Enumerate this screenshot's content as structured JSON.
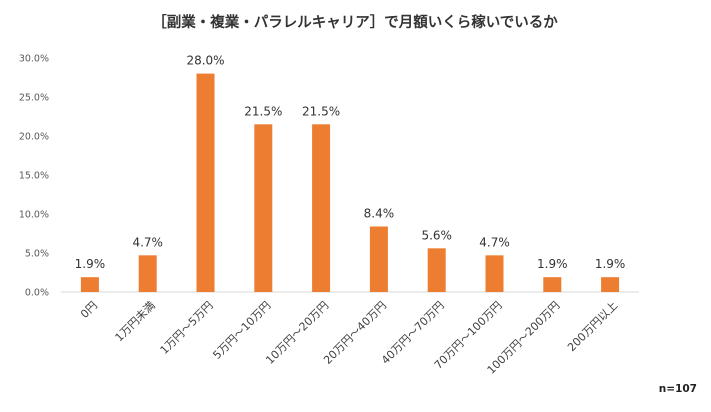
{
  "chart_data": {
    "type": "bar",
    "title": "［副業・複業・パラレルキャリア］で月額いくら稼いでいるか",
    "categories": [
      "0円",
      "1万円未満",
      "1万円～5万円",
      "5万円～10万円",
      "10万円～20万円",
      "20万円～40万円",
      "40万円～70万円",
      "70万円～100万円",
      "100万円～200万円",
      "200万円以上"
    ],
    "values": [
      1.9,
      4.7,
      28.0,
      21.5,
      21.5,
      8.4,
      5.6,
      4.7,
      1.9,
      1.9
    ],
    "data_labels": [
      "1.9%",
      "4.7%",
      "28.0%",
      "21.5%",
      "21.5%",
      "8.4%",
      "5.6%",
      "4.7%",
      "1.9%",
      "1.9%"
    ],
    "yticks": [
      0,
      5,
      10,
      15,
      20,
      25,
      30
    ],
    "ytick_labels": [
      "0.0%",
      "5.0%",
      "10.0%",
      "15.0%",
      "20.0%",
      "25.0%",
      "30.0%"
    ],
    "ylim": [
      0,
      30
    ],
    "grid": false,
    "bar_color": "#ED7D31",
    "note": "n=107"
  }
}
